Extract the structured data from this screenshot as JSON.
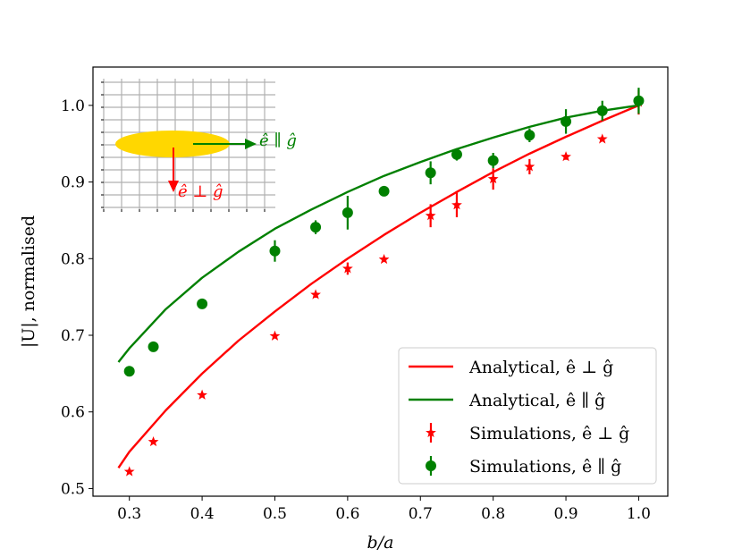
{
  "chart_data": {
    "type": "scatter",
    "xlabel": "b/a",
    "ylabel": "|U|, normalised",
    "xlim": [
      0.25,
      1.04
    ],
    "ylim": [
      0.49,
      1.05
    ],
    "xticks": [
      "0.3",
      "0.4",
      "0.5",
      "0.6",
      "0.7",
      "0.8",
      "0.9",
      "1.0"
    ],
    "yticks": [
      "0.5",
      "0.6",
      "0.7",
      "0.8",
      "0.9",
      "1.0"
    ],
    "colors": {
      "perp": "#ff0000",
      "par": "#008000"
    },
    "series": [
      {
        "name": "Analytical, ê ⊥ ĝ",
        "kind": "line",
        "color": "#ff0000",
        "x": [
          0.285,
          0.3,
          0.35,
          0.4,
          0.45,
          0.5,
          0.55,
          0.6,
          0.65,
          0.7,
          0.75,
          0.8,
          0.85,
          0.9,
          0.95,
          1.0
        ],
        "y": [
          0.527,
          0.548,
          0.602,
          0.65,
          0.693,
          0.731,
          0.767,
          0.8,
          0.831,
          0.86,
          0.887,
          0.913,
          0.937,
          0.959,
          0.98,
          1.0
        ]
      },
      {
        "name": "Analytical, ê ∥ ĝ",
        "kind": "line",
        "color": "#008000",
        "x": [
          0.285,
          0.3,
          0.35,
          0.4,
          0.45,
          0.5,
          0.55,
          0.6,
          0.65,
          0.7,
          0.75,
          0.8,
          0.85,
          0.9,
          0.95,
          1.0
        ],
        "y": [
          0.665,
          0.683,
          0.734,
          0.775,
          0.809,
          0.839,
          0.864,
          0.887,
          0.908,
          0.926,
          0.943,
          0.958,
          0.972,
          0.984,
          0.993,
          1.0
        ]
      },
      {
        "name": "Simulations, ê ⊥ ĝ",
        "kind": "points",
        "marker": "star",
        "color": "#ff0000",
        "x": [
          0.3,
          0.333,
          0.4,
          0.5,
          0.556,
          0.6,
          0.65,
          0.714,
          0.75,
          0.8,
          0.85,
          0.9,
          0.95,
          1.0
        ],
        "y": [
          0.522,
          0.561,
          0.622,
          0.699,
          0.753,
          0.787,
          0.799,
          0.856,
          0.87,
          0.904,
          0.92,
          0.933,
          0.956,
          1.004
        ],
        "err": [
          0.003,
          0.003,
          0.003,
          0.003,
          0.004,
          0.008,
          0.003,
          0.015,
          0.016,
          0.014,
          0.01,
          0.004,
          0.003,
          0.016
        ]
      },
      {
        "name": "Simulations, ê ∥ ĝ",
        "kind": "points",
        "marker": "circle",
        "color": "#008000",
        "x": [
          0.3,
          0.333,
          0.4,
          0.5,
          0.556,
          0.6,
          0.65,
          0.714,
          0.75,
          0.8,
          0.85,
          0.9,
          0.95,
          1.0
        ],
        "y": [
          0.653,
          0.685,
          0.741,
          0.81,
          0.841,
          0.86,
          0.888,
          0.912,
          0.936,
          0.928,
          0.961,
          0.979,
          0.993,
          1.006
        ],
        "err": [
          0.003,
          0.003,
          0.003,
          0.014,
          0.009,
          0.022,
          0.004,
          0.015,
          0.008,
          0.01,
          0.009,
          0.016,
          0.013,
          0.017
        ]
      }
    ],
    "legend_position": "bottom-right",
    "inset": {
      "label_par": "ê ∥ ĝ",
      "label_perp": "ê ⊥ ĝ",
      "ellipse_color": "#ffd700"
    }
  }
}
